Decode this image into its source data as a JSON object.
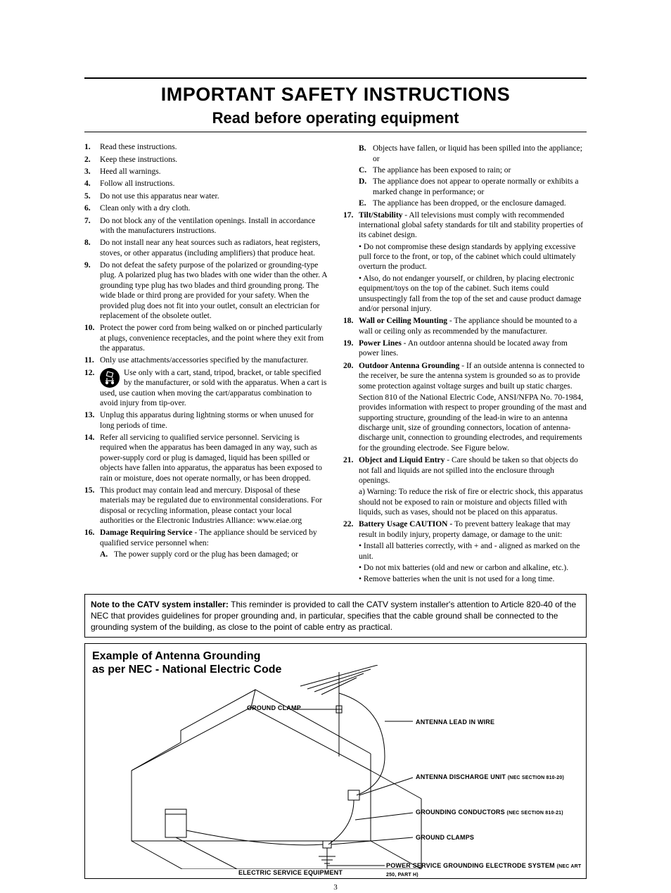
{
  "title": "IMPORTANT SAFETY INSTRUCTIONS",
  "subtitle": "Read before operating equipment",
  "left": [
    {
      "n": "1.",
      "t": "Read these instructions."
    },
    {
      "n": "2.",
      "t": "Keep these instructions."
    },
    {
      "n": "3.",
      "t": "Heed all warnings."
    },
    {
      "n": "4.",
      "t": "Follow all instructions."
    },
    {
      "n": "5.",
      "t": "Do not use this apparatus near water."
    },
    {
      "n": "6.",
      "t": "Clean only with a dry cloth."
    },
    {
      "n": "7.",
      "t": "Do not block any of the ventilation openings. Install in accordance with the manufacturers instructions."
    },
    {
      "n": "8.",
      "t": "Do not install near any heat sources such as radiators, heat registers, stoves, or other apparatus (including amplifiers) that produce heat."
    },
    {
      "n": "9.",
      "t": "Do not defeat the safety purpose of the polarized or grounding-type plug. A polarized plug has two blades with one wider than the other. A grounding type plug has two blades and third grounding prong. The wide blade or third prong are provided for your safety. When the provided plug does not fit into your outlet, consult an electrician for replacement of the obsolete outlet."
    },
    {
      "n": "10.",
      "t": "Protect the power cord from being walked on or pinched particularly at plugs, convenience receptacles, and the point where they exit from the apparatus."
    },
    {
      "n": "11.",
      "t": "Only use attachments/accessories specified by the manufacturer."
    },
    {
      "n": "12.",
      "t": "Use only with a cart, stand, tripod, bracket, or table specified by the manufacturer, or sold with the apparatus. When a cart is used, use caution when moving the cart/apparatus combination to avoid injury from tip-over."
    },
    {
      "n": "13.",
      "t": "Unplug this apparatus during lightning storms or when unused for long periods of time."
    },
    {
      "n": "14.",
      "t": "Refer all servicing to qualified service personnel. Servicing is required when the apparatus has been damaged in any way, such as power-supply cord or plug is damaged, liquid has been spilled or objects have fallen into apparatus, the apparatus has been exposed to rain or moisture, does not operate normally, or has been dropped."
    },
    {
      "n": "15.",
      "t": "This product may contain lead and mercury. Disposal of these materials may be regulated due to environmental considerations. For disposal or recycling information, please contact your local authorities or the Electronic Industries Alliance: www.eiae.org"
    }
  ],
  "left16": {
    "n": "16.",
    "head": "Damage Requiring Service",
    "tail": " - The appliance should be serviced by qualified service personnel when:",
    "subA": {
      "l": "A.",
      "t": "The power supply cord or the plug has been damaged; or"
    }
  },
  "right16": [
    {
      "l": "B.",
      "t": "Objects have fallen, or liquid has been spilled into the appliance; or"
    },
    {
      "l": "C.",
      "t": "The appliance has been exposed to rain; or"
    },
    {
      "l": "D.",
      "t": "The appliance does not appear to operate normally or exhibits a marked change in performance; or"
    },
    {
      "l": "E.",
      "t": "The appliance has been dropped, or the enclosure damaged."
    }
  ],
  "r17": {
    "n": "17.",
    "head": "Tilt/Stability",
    "tail": " - All televisions must comply with recommended international global safety standards for tilt and stability properties of its cabinet design.",
    "b1": "• Do not compromise these design standards by applying excessive pull force to the front, or top, of the cabinet which could ultimately overturn the product.",
    "b2": "• Also, do not endanger yourself, or children, by placing electronic equipment/toys on the top of the cabinet. Such items could unsuspectingly fall from the top of the set and cause product damage and/or personal injury."
  },
  "r18": {
    "n": "18.",
    "head": "Wall or Ceiling Mounting",
    "tail": " - The appliance should be mounted to a wall or ceiling only as recommended by the manufacturer."
  },
  "r19": {
    "n": "19.",
    "head": "Power Lines",
    "tail": " - An outdoor antenna should be located away from power lines."
  },
  "r20": {
    "n": "20.",
    "head": "Outdoor Antenna Grounding",
    "tail": " - If an outside antenna is connected to the receiver, be sure the antenna system is grounded so as to provide some protection against voltage surges and built up static charges.",
    "p2": "Section 810 of the National Electric Code, ANSI/NFPA No. 70-1984, provides information with respect to proper grounding of the mast and supporting structure, grounding of the lead-in wire to an antenna discharge unit, size of grounding connectors, location of antenna-discharge unit, connection to grounding electrodes, and requirements for the grounding electrode. See Figure below."
  },
  "r21": {
    "n": "21.",
    "head": "Object and Liquid Entry",
    "tail": " - Care should be taken so that objects do not fall and liquids are not spilled into the enclosure through openings.",
    "p2": "a) Warning: To reduce the risk of fire or electric shock, this apparatus should not be exposed to rain or moisture and objects filled with liquids, such as vases, should not be placed on this apparatus."
  },
  "r22": {
    "n": "22.",
    "head": "Battery Usage CAUTION - ",
    "tail": "To prevent battery leakage that may result in bodily injury, property damage, or damage to the unit:",
    "b1": "• Install all batteries correctly, with + and - aligned as marked on the unit.",
    "b2": "• Do not mix batteries (old and new or carbon and alkaline, etc.).",
    "b3": "• Remove batteries when the unit is not used for a long time."
  },
  "note": {
    "head": "Note to the CATV system installer: ",
    "body": "This reminder is provided to call the CATV system installer's attention to Article 820-40 of the NEC that provides guidelines for proper grounding and, in particular, specifies that the cable ground shall be connected to the grounding system of the building, as close to the point of cable entry as practical."
  },
  "diagram": {
    "title1": "Example of Antenna Grounding",
    "title2": "as per NEC - National Electric Code",
    "labels": {
      "gclamp": "GROUND CLAMP",
      "lead": "ANTENNA LEAD IN WIRE",
      "adu": "ANTENNA DISCHARGE UNIT ",
      "adu_s": "(NEC SECTION 810-20)",
      "gcond": "GROUNDING CONDUCTORS ",
      "gcond_s": "(NEC SECTION 810-21)",
      "gclamps": "GROUND CLAMPS",
      "pse": "POWER SERVICE GROUNDING ELECTRODE SYSTEM ",
      "pse_s": "(NEC ART 250, PART H)",
      "ese": "ELECTRIC SERVICE EQUIPMENT"
    }
  },
  "pagenum": "3"
}
